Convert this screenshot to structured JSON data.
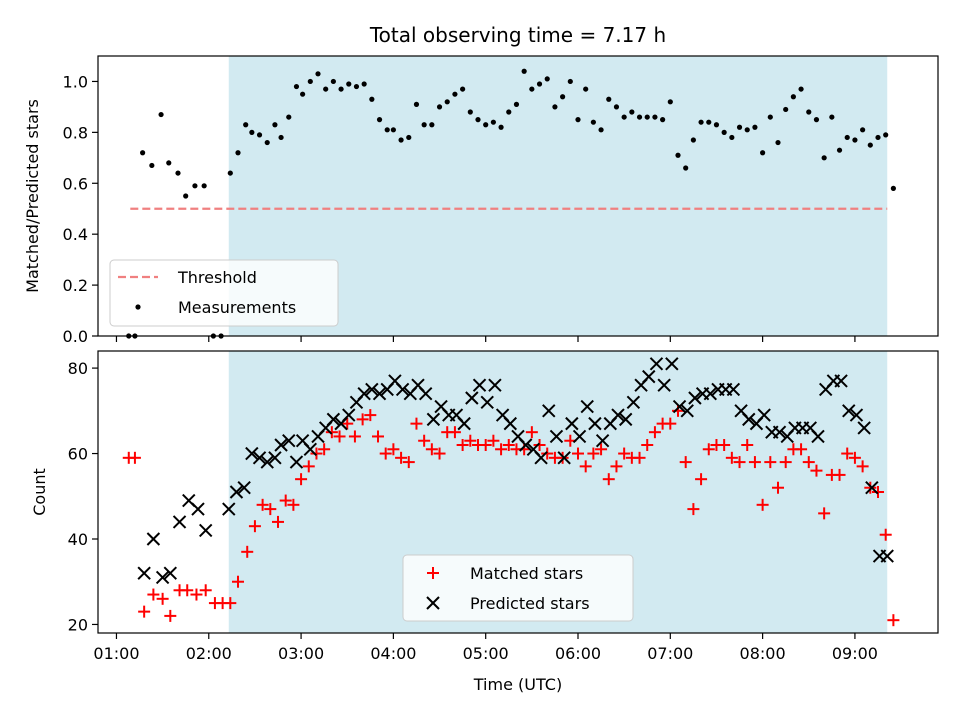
{
  "title": "Total observing time = 7.17 h",
  "colors": {
    "shade": "#add8e6",
    "threshold": "#f08080",
    "measurement": "#000000",
    "matched": "#ff0000",
    "predicted": "#000000"
  },
  "chart_data": [
    {
      "type": "scatter",
      "ylabel": "Matched/Predicted stars",
      "xlabel": "",
      "xlim": [
        "01:00",
        "09:30"
      ],
      "xtick_labels": [
        "01:00",
        "02:00",
        "03:00",
        "04:00",
        "05:00",
        "06:00",
        "07:00",
        "08:00",
        "09:00"
      ],
      "ylim": [
        0.0,
        1.1
      ],
      "ytick_labels": [
        "0.0",
        "0.2",
        "0.4",
        "0.6",
        "0.8",
        "1.0"
      ],
      "shaded_span": [
        "02:13",
        "09:21"
      ],
      "legend_position": "lower left",
      "threshold": {
        "name": "Threshold",
        "y": 0.5,
        "x_range": [
          "01:09",
          "09:21"
        ]
      },
      "measurements": {
        "name": "Measurements",
        "x": [
          "01:08",
          "01:12",
          "01:17",
          "01:23",
          "01:29",
          "01:34",
          "01:40",
          "01:45",
          "01:51",
          "01:57",
          "02:03",
          "02:08",
          "02:14",
          "02:19",
          "02:24",
          "02:28",
          "02:33",
          "02:38",
          "02:43",
          "02:47",
          "02:52",
          "02:57",
          "03:01",
          "03:06",
          "03:11",
          "03:16",
          "03:21",
          "03:26",
          "03:31",
          "03:36",
          "03:41",
          "03:46",
          "03:51",
          "03:56",
          "04:00",
          "04:05",
          "04:10",
          "04:15",
          "04:20",
          "04:25",
          "04:30",
          "04:35",
          "04:40",
          "04:45",
          "04:50",
          "04:55",
          "05:00",
          "05:05",
          "05:10",
          "05:15",
          "05:20",
          "05:25",
          "05:30",
          "05:35",
          "05:40",
          "05:45",
          "05:50",
          "05:55",
          "06:00",
          "06:05",
          "06:10",
          "06:15",
          "06:20",
          "06:25",
          "06:30",
          "06:35",
          "06:40",
          "06:45",
          "06:50",
          "06:55",
          "07:00",
          "07:05",
          "07:10",
          "07:15",
          "07:20",
          "07:25",
          "07:30",
          "07:35",
          "07:40",
          "07:45",
          "07:50",
          "07:55",
          "08:00",
          "08:05",
          "08:10",
          "08:15",
          "08:20",
          "08:25",
          "08:30",
          "08:35",
          "08:40",
          "08:45",
          "08:50",
          "08:55",
          "09:00",
          "09:05",
          "09:10",
          "09:15",
          "09:20",
          "09:25"
        ],
        "y": [
          0.0,
          0.0,
          0.72,
          0.67,
          0.87,
          0.68,
          0.64,
          0.55,
          0.59,
          0.59,
          0.0,
          0.0,
          0.64,
          0.72,
          0.83,
          0.8,
          0.79,
          0.76,
          0.83,
          0.78,
          0.86,
          0.98,
          0.95,
          1.0,
          1.03,
          0.97,
          1.0,
          0.97,
          0.99,
          0.98,
          0.99,
          0.93,
          0.85,
          0.81,
          0.81,
          0.77,
          0.78,
          0.91,
          0.83,
          0.83,
          0.9,
          0.92,
          0.95,
          0.97,
          0.88,
          0.85,
          0.83,
          0.84,
          0.82,
          0.88,
          0.91,
          1.04,
          0.97,
          0.99,
          1.01,
          0.9,
          0.94,
          1.0,
          0.85,
          0.97,
          0.84,
          0.81,
          0.93,
          0.9,
          0.86,
          0.88,
          0.86,
          0.86,
          0.86,
          0.85,
          0.92,
          0.71,
          0.66,
          0.77,
          0.84,
          0.84,
          0.83,
          0.8,
          0.78,
          0.82,
          0.81,
          0.82,
          0.72,
          0.86,
          0.76,
          0.89,
          0.94,
          0.97,
          0.88,
          0.85,
          0.7,
          0.86,
          0.73,
          0.78,
          0.77,
          0.81,
          0.75,
          0.78,
          0.79,
          0.58
        ]
      }
    },
    {
      "type": "scatter",
      "ylabel": "Count",
      "xlabel": "Time (UTC)",
      "xlim": [
        "01:00",
        "09:30"
      ],
      "xtick_labels": [
        "01:00",
        "02:00",
        "03:00",
        "04:00",
        "05:00",
        "06:00",
        "07:00",
        "08:00",
        "09:00"
      ],
      "ylim": [
        18,
        84
      ],
      "ytick_labels": [
        "20",
        "40",
        "60",
        "80"
      ],
      "shaded_span": [
        "02:13",
        "09:21"
      ],
      "legend_position": "lower center",
      "series": [
        {
          "name": "Matched stars",
          "marker": "plus",
          "x": [
            "01:08",
            "01:12",
            "01:18",
            "01:24",
            "01:30",
            "01:35",
            "01:41",
            "01:46",
            "01:52",
            "01:58",
            "02:04",
            "02:09",
            "02:14",
            "02:19",
            "02:25",
            "02:30",
            "02:35",
            "02:40",
            "02:45",
            "02:50",
            "02:55",
            "03:00",
            "03:05",
            "03:10",
            "03:15",
            "03:20",
            "03:25",
            "03:30",
            "03:35",
            "03:40",
            "03:45",
            "03:50",
            "03:55",
            "04:00",
            "04:05",
            "04:10",
            "04:15",
            "04:20",
            "04:25",
            "04:30",
            "04:35",
            "04:40",
            "04:45",
            "04:50",
            "04:55",
            "05:00",
            "05:05",
            "05:10",
            "05:15",
            "05:20",
            "05:25",
            "05:30",
            "05:35",
            "05:40",
            "05:45",
            "05:50",
            "05:55",
            "06:00",
            "06:05",
            "06:10",
            "06:15",
            "06:20",
            "06:25",
            "06:30",
            "06:35",
            "06:40",
            "06:45",
            "06:50",
            "06:55",
            "07:00",
            "07:05",
            "07:10",
            "07:15",
            "07:20",
            "07:25",
            "07:30",
            "07:35",
            "07:40",
            "07:45",
            "07:50",
            "07:55",
            "08:00",
            "08:05",
            "08:10",
            "08:15",
            "08:20",
            "08:25",
            "08:30",
            "08:35",
            "08:40",
            "08:45",
            "08:50",
            "08:55",
            "09:00",
            "09:05",
            "09:10",
            "09:15",
            "09:20",
            "09:25"
          ],
          "y": [
            59,
            59,
            23,
            27,
            26,
            22,
            28,
            28,
            27,
            28,
            25,
            25,
            25,
            30,
            37,
            43,
            48,
            47,
            44,
            49,
            48,
            54,
            57,
            60,
            61,
            65,
            64,
            67,
            64,
            68,
            69,
            64,
            60,
            61,
            59,
            58,
            67,
            63,
            61,
            60,
            65,
            65,
            62,
            63,
            62,
            62,
            63,
            61,
            62,
            61,
            61,
            65,
            62,
            60,
            59,
            59,
            63,
            60,
            57,
            60,
            61,
            54,
            57,
            60,
            59,
            59,
            62,
            65,
            67,
            67,
            70,
            58,
            47,
            54,
            61,
            62,
            62,
            59,
            58,
            62,
            58,
            48,
            58,
            52,
            58,
            61,
            61,
            58,
            56,
            46,
            55,
            55,
            60,
            59,
            57,
            52,
            51,
            41,
            21
          ]
        },
        {
          "name": "Predicted stars",
          "marker": "x",
          "x": [
            "01:18",
            "01:24",
            "01:30",
            "01:35",
            "01:41",
            "01:47",
            "01:53",
            "01:58",
            "02:13",
            "02:18",
            "02:23",
            "02:28",
            "02:33",
            "02:38",
            "02:43",
            "02:47",
            "02:52",
            "02:57",
            "03:01",
            "03:06",
            "03:11",
            "03:16",
            "03:21",
            "03:26",
            "03:31",
            "03:36",
            "03:41",
            "03:46",
            "03:51",
            "03:56",
            "04:01",
            "04:06",
            "04:11",
            "04:16",
            "04:21",
            "04:26",
            "04:31",
            "04:36",
            "04:41",
            "04:46",
            "04:51",
            "04:56",
            "05:01",
            "05:06",
            "05:11",
            "05:16",
            "05:21",
            "05:26",
            "05:31",
            "05:36",
            "05:41",
            "05:46",
            "05:51",
            "05:56",
            "06:01",
            "06:06",
            "06:11",
            "06:16",
            "06:21",
            "06:26",
            "06:31",
            "06:36",
            "06:41",
            "06:46",
            "06:51",
            "06:56",
            "07:01",
            "07:06",
            "07:11",
            "07:16",
            "07:21",
            "07:26",
            "07:31",
            "07:36",
            "07:41",
            "07:46",
            "07:51",
            "07:56",
            "08:01",
            "08:06",
            "08:11",
            "08:16",
            "08:21",
            "08:26",
            "08:31",
            "08:36",
            "08:41",
            "08:46",
            "08:51",
            "08:56",
            "09:01",
            "09:06",
            "09:11",
            "09:16",
            "09:21"
          ],
          "y": [
            32,
            40,
            31,
            32,
            44,
            49,
            47,
            42,
            47,
            51,
            52,
            60,
            59,
            58,
            59,
            62,
            63,
            58,
            63,
            61,
            64,
            66,
            68,
            67,
            69,
            72,
            74,
            75,
            74,
            75,
            77,
            75,
            74,
            76,
            74,
            68,
            71,
            69,
            69,
            67,
            73,
            76,
            72,
            76,
            69,
            67,
            64,
            62,
            61,
            59,
            70,
            64,
            59,
            67,
            64,
            71,
            67,
            63,
            67,
            69,
            68,
            72,
            76,
            78,
            81,
            76,
            81,
            71,
            70,
            73,
            74,
            74,
            75,
            75,
            75,
            70,
            68,
            67,
            69,
            65,
            65,
            64,
            66,
            66,
            66,
            64,
            75,
            77,
            77,
            70,
            69,
            66,
            52,
            36,
            36
          ]
        }
      ]
    }
  ]
}
